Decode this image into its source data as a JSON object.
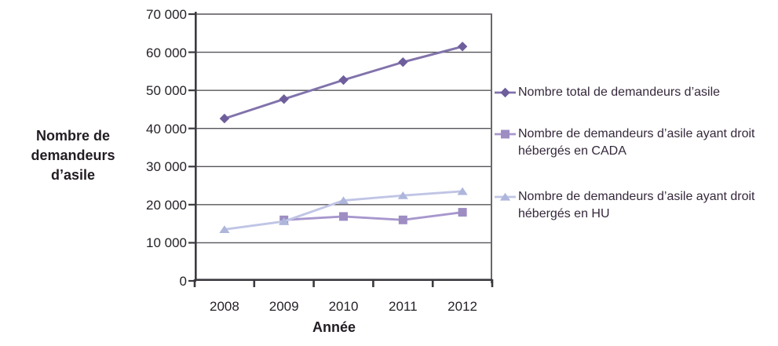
{
  "y_axis": {
    "title_lines": [
      "Nombre de",
      "demandeurs",
      "d’asile"
    ]
  },
  "x_axis": {
    "title": "Année"
  },
  "chart_data": {
    "type": "line",
    "title": "",
    "xlabel": "Année",
    "ylabel": "Nombre de demandeurs d’asile",
    "categories": [
      "2008",
      "2009",
      "2010",
      "2011",
      "2012"
    ],
    "ylim": [
      0,
      70000
    ],
    "grid": true,
    "legend_position": "right",
    "y_ticks": [
      {
        "label": "0",
        "value": 0
      },
      {
        "label": "10 000",
        "value": 10000
      },
      {
        "label": "20 000",
        "value": 20000
      },
      {
        "label": "30 000",
        "value": 30000
      },
      {
        "label": "40 000",
        "value": 40000
      },
      {
        "label": "50 000",
        "value": 50000
      },
      {
        "label": "60 000",
        "value": 60000
      },
      {
        "label": "70 000",
        "value": 70000
      }
    ],
    "series": [
      {
        "name": "total",
        "label": "Nombre total de demandeurs d’asile",
        "marker": "diamond",
        "line_color": "#8172ab",
        "marker_color": "#6e5e9c",
        "values": [
          42600,
          47700,
          52700,
          57400,
          61500
        ]
      },
      {
        "name": "cada",
        "label": "Nombre de demandeurs d’asile ayant droit hébergés en CADA",
        "marker": "square",
        "line_color": "#a797cd",
        "marker_color": "#9d8dc3",
        "values": [
          null,
          16000,
          16900,
          16000,
          18000
        ]
      },
      {
        "name": "hu",
        "label": "Nombre de demandeurs d’asile ayant droit hébergés en HU",
        "marker": "triangle",
        "line_color": "#c0c5e5",
        "marker_color": "#aeb6dc",
        "values": [
          13500,
          15600,
          21100,
          22400,
          23500
        ]
      }
    ],
    "style": {
      "grid_color": "#57545a",
      "axis_color": "#3c393f",
      "right_border_color": "#6b686d",
      "background": "#ffffff"
    }
  }
}
